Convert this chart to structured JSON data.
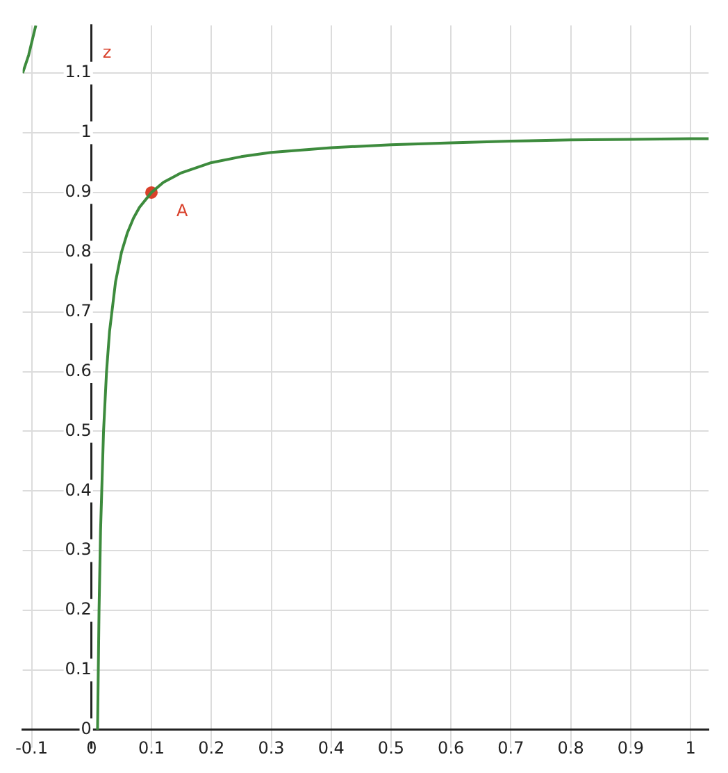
{
  "chart_data": {
    "type": "line",
    "ylabel": "z",
    "xlim": [
      -0.115,
      1.03
    ],
    "ylim": [
      -0.03,
      1.18
    ],
    "xticks": [
      -0.1,
      0,
      0.1,
      0.2,
      0.3,
      0.4,
      0.5,
      0.6,
      0.7,
      0.8,
      0.9,
      1
    ],
    "yticks": [
      0,
      0.1,
      0.2,
      0.3,
      0.4,
      0.5,
      0.6,
      0.7,
      0.8,
      0.9,
      1,
      1.1
    ],
    "grid": true,
    "legend": false,
    "annotations": [
      {
        "text": "A",
        "x": 0.1,
        "y": 0.9
      }
    ],
    "series": [
      {
        "type": "line",
        "color": "#3d8b3d",
        "line_style": "solid",
        "marker": "none",
        "x": [
          -0.115,
          -0.105,
          -0.093
        ],
        "values": [
          1.1,
          1.13,
          1.18
        ]
      },
      {
        "type": "line",
        "color": "#3d8b3d",
        "line_style": "solid",
        "marker": "none",
        "x": [
          0.01,
          0.0125,
          0.015,
          0.02,
          0.025,
          0.03,
          0.04,
          0.05,
          0.06,
          0.07,
          0.08,
          0.1,
          0.12,
          0.15,
          0.2,
          0.25,
          0.3,
          0.4,
          0.5,
          0.6,
          0.7,
          0.8,
          0.9,
          1.0,
          1.03
        ],
        "values": [
          0,
          0.2,
          0.333,
          0.5,
          0.6,
          0.667,
          0.75,
          0.8,
          0.833,
          0.857,
          0.875,
          0.9,
          0.917,
          0.933,
          0.95,
          0.96,
          0.967,
          0.975,
          0.98,
          0.983,
          0.986,
          0.988,
          0.989,
          0.99,
          0.99
        ]
      },
      {
        "type": "scatter",
        "color": "#d9412b",
        "marker": "circle",
        "x": [
          0.1
        ],
        "values": [
          0.9
        ]
      }
    ]
  }
}
